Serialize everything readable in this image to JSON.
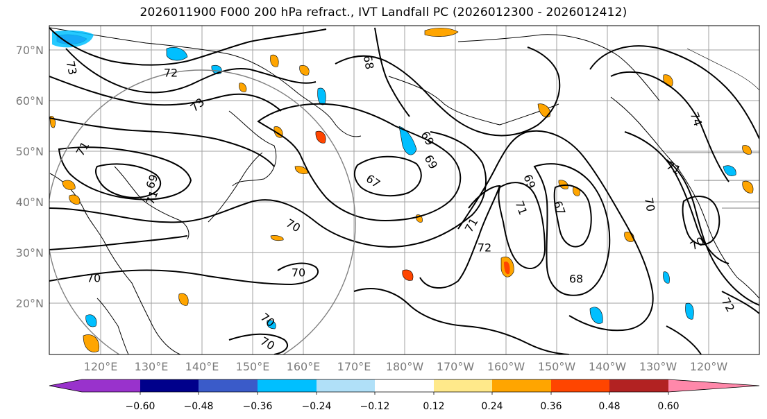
{
  "title": "2026011900 F000 200 hPa refract., IVT Landfall PC (2026012300 - 2026012412)",
  "map": {
    "lat_labels": [
      "70°N",
      "60°N",
      "50°N",
      "40°N",
      "30°N",
      "20°N"
    ],
    "lon_labels": [
      "120°E",
      "130°E",
      "140°E",
      "150°E",
      "160°E",
      "170°E",
      "180°W",
      "170°W",
      "160°W",
      "150°W",
      "140°W",
      "130°W",
      "120°W"
    ],
    "contour_labels": [
      "73",
      "72",
      "73",
      "71",
      "69",
      "71",
      "70",
      "70",
      "70",
      "70",
      "70",
      "68",
      "69",
      "69",
      "67",
      "71",
      "72",
      "69",
      "71",
      "67",
      "68",
      "70",
      "71",
      "74",
      "70",
      "72"
    ]
  },
  "colorbar": {
    "tick_labels": [
      "−0.60",
      "−0.48",
      "−0.36",
      "−0.24",
      "−0.12",
      "0.12",
      "0.24",
      "0.36",
      "0.48",
      "0.60"
    ],
    "colors": [
      "#9932cc",
      "#00008b",
      "#3a5bc9",
      "#00bfff",
      "#b0e0f8",
      "#ffffff",
      "#ffe98a",
      "#ffa500",
      "#ff4500",
      "#b22222",
      "#ff88aa"
    ]
  },
  "colors": {
    "grid": "#a0a0a0",
    "contour": "#000000",
    "circle": "#808080",
    "positive_orange": "#ffa500",
    "positive_red": "#ff4500",
    "negative_blue": "#00bfff"
  }
}
